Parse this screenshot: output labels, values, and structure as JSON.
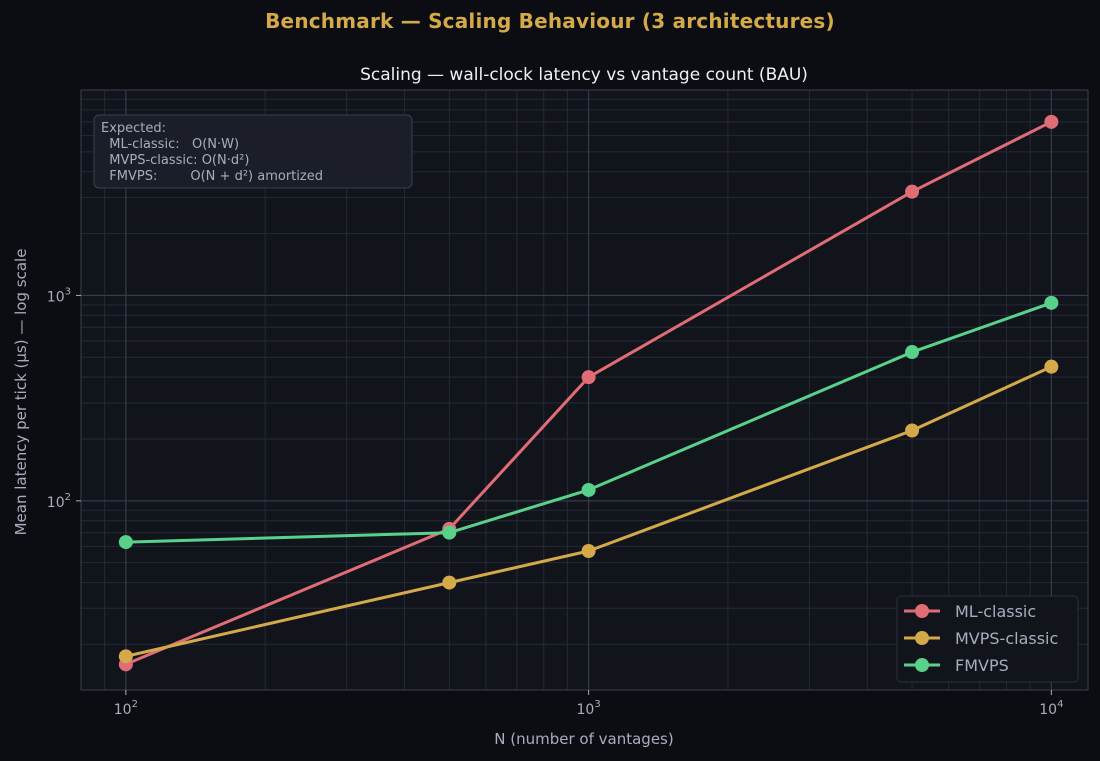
{
  "suptitle": "Benchmark — Scaling Behaviour (3 architectures)",
  "colors": {
    "background": "#0b0d12",
    "plot_bg": "#12141c",
    "grid": "#2b2f3d",
    "text": "#a8adbd",
    "title": "#eef0f4",
    "accent": "#d4a94a"
  },
  "chart_data": {
    "type": "line",
    "title": "Scaling — wall-clock latency vs vantage count (BAU)",
    "xlabel": "N (number of vantages)",
    "ylabel": "Mean latency per tick (µs) — log scale",
    "xscale": "log",
    "yscale": "log",
    "xlim": [
      80,
      12000
    ],
    "ylim": [
      12,
      10000
    ],
    "x": [
      100,
      500,
      1000,
      5000,
      10000
    ],
    "x_tick_values": [
      100,
      1000,
      10000
    ],
    "x_tick_labels": [
      {
        "base": "10",
        "exp": "2"
      },
      {
        "base": "10",
        "exp": "3"
      },
      {
        "base": "10",
        "exp": "4"
      }
    ],
    "y_tick_values": [
      100,
      1000
    ],
    "y_tick_labels": [
      {
        "base": "10",
        "exp": "2"
      },
      {
        "base": "10",
        "exp": "3"
      }
    ],
    "grid": true,
    "legend_position": "lower-right",
    "series": [
      {
        "name": "ML-classic",
        "color": "#e06c75",
        "values": [
          16,
          73,
          400,
          3200,
          7000
        ]
      },
      {
        "name": "MVPS-classic",
        "color": "#d4a94a",
        "values": [
          17.5,
          40,
          57,
          220,
          450
        ]
      },
      {
        "name": "FMVPS",
        "color": "#5ad18a",
        "values": [
          63,
          70,
          113,
          530,
          920
        ]
      }
    ],
    "annotation": {
      "lines": [
        "Expected:",
        "  ML-classic:   O(N·W)",
        "  MVPS-classic: O(N·d²)",
        "  FMVPS:        O(N + d²) amortized"
      ]
    }
  }
}
